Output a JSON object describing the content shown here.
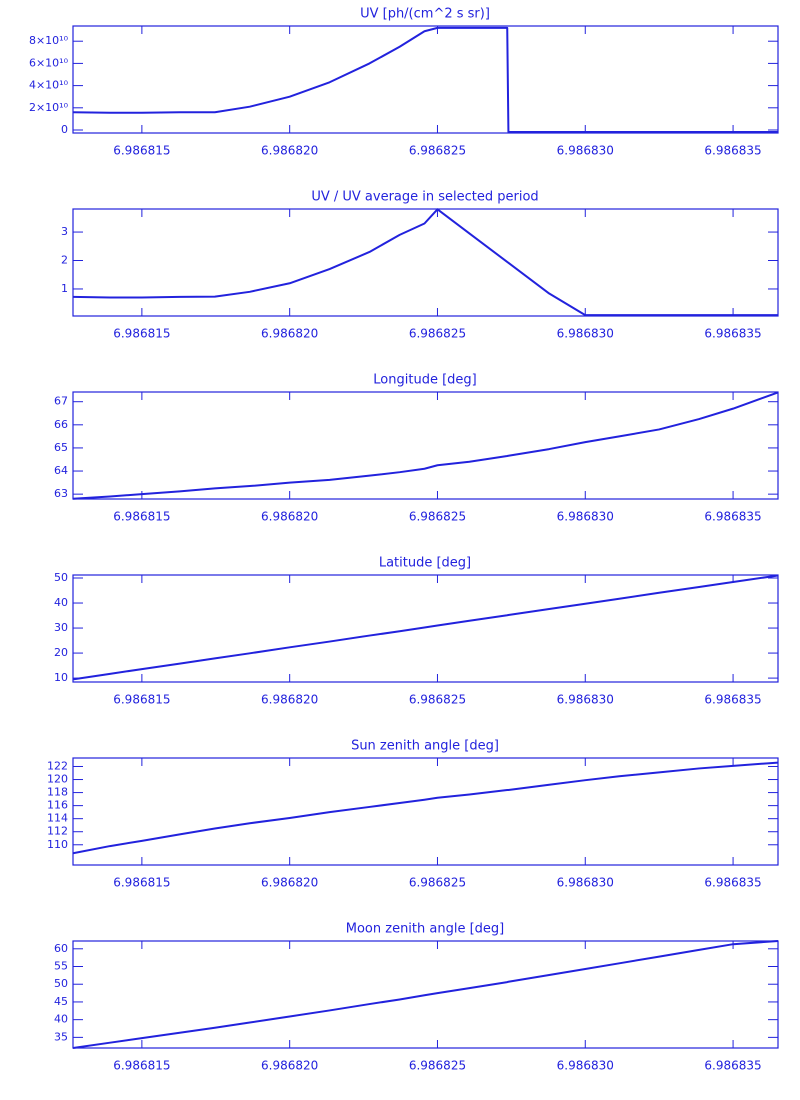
{
  "chart_data": [
    {
      "type": "line",
      "title": "UV [ph/(cm^2 s sr)]",
      "color": "#2222dd",
      "x": [
        6.98681267,
        6.98681392,
        6.986815,
        6.98681628,
        6.98681747,
        6.98681865,
        6.98682,
        6.98682135,
        6.9868227,
        6.98682372,
        6.98682456,
        6.986825,
        6.98682608,
        6.98682736,
        6.9868274,
        6.98682878,
        6.98683,
        6.98683115,
        6.9868325,
        6.98683385,
        6.986835,
        6.98683652
      ],
      "values": [
        16000000000,
        15500000000,
        15500000000,
        16000000000,
        16000000000,
        21000000000,
        30000000000,
        43000000000,
        60000000000,
        75000000000,
        89000000000,
        92000000000,
        92000000000,
        92000000000,
        -1800000000,
        -1800000000,
        -1800000000,
        -1800000000,
        -1800000000,
        -1800000000,
        -1800000000,
        -1800000000
      ],
      "xlim": [
        6.98681267,
        6.98683652
      ],
      "xticks": [
        6.986815,
        {
          "value": 6.98682,
          "label": "6.986820"
        },
        6.986825,
        {
          "value": 6.98683,
          "label": "6.986830"
        },
        6.986835
      ],
      "ylim": [
        -2700000000,
        93700000000
      ],
      "yticks": [
        0,
        {
          "value": 20000000000,
          "label": "2×10¹⁰"
        },
        {
          "value": 40000000000,
          "label": "4×10¹⁰"
        },
        {
          "value": 60000000000,
          "label": "6×10¹⁰"
        },
        {
          "value": 80000000000,
          "label": "8×10¹⁰"
        }
      ]
    },
    {
      "type": "line",
      "title": "UV / UV average in selected period",
      "color": "#2222dd",
      "x": [
        6.98681267,
        6.98681392,
        6.986815,
        6.98681628,
        6.98681747,
        6.98681865,
        6.98682,
        6.98682135,
        6.9868227,
        6.98682372,
        6.98682456,
        6.986825,
        6.98682608,
        6.98682736,
        6.9868274,
        6.98682878,
        6.98683,
        6.98683115,
        6.9868325,
        6.98683385,
        6.986835,
        6.98683652
      ],
      "values": [
        0.72,
        0.7,
        0.7,
        0.72,
        0.73,
        0.9,
        1.2,
        1.7,
        2.3,
        2.9,
        3.3,
        3.8,
        2.95,
        1.95,
        1.92,
        0.84,
        0.08,
        0.08,
        0.08,
        0.08,
        0.08,
        0.08
      ],
      "xlim": [
        6.98681267,
        6.98683652
      ],
      "xticks": [
        6.986815,
        {
          "value": 6.98682,
          "label": "6.986820"
        },
        6.986825,
        {
          "value": 6.98683,
          "label": "6.986830"
        },
        6.986835
      ],
      "ylim": [
        0.05,
        3.81
      ],
      "yticks": [
        1,
        2,
        3
      ]
    },
    {
      "type": "line",
      "title": "Longitude [deg]",
      "color": "#2222dd",
      "x": [
        6.98681267,
        6.98681392,
        6.986815,
        6.98681628,
        6.98681747,
        6.98681865,
        6.98682,
        6.98682135,
        6.9868227,
        6.98682372,
        6.98682456,
        6.986825,
        6.98682608,
        6.98682736,
        6.9868274,
        6.98682878,
        6.98683,
        6.98683115,
        6.9868325,
        6.98683385,
        6.986835,
        6.98683652
      ],
      "values": [
        62.8,
        62.9,
        63.0,
        63.12,
        63.25,
        63.35,
        63.5,
        63.62,
        63.8,
        63.95,
        64.1,
        64.25,
        64.4,
        64.65,
        64.66,
        64.95,
        65.25,
        65.5,
        65.8,
        66.25,
        66.7,
        67.4
      ],
      "xlim": [
        6.98681267,
        6.98683652
      ],
      "xticks": [
        6.986815,
        {
          "value": 6.98682,
          "label": "6.986820"
        },
        6.986825,
        {
          "value": 6.98683,
          "label": "6.986830"
        },
        6.986835
      ],
      "ylim": [
        62.79,
        67.42
      ],
      "yticks": [
        63,
        64,
        65,
        66,
        67
      ]
    },
    {
      "type": "line",
      "title": "Latitude [deg]",
      "color": "#2222dd",
      "x": [
        6.98681267,
        6.98681392,
        6.986815,
        6.98681628,
        6.98681747,
        6.98681865,
        6.98682,
        6.98682135,
        6.9868227,
        6.98682372,
        6.98682456,
        6.986825,
        6.98682608,
        6.98682736,
        6.9868274,
        6.98682878,
        6.98683,
        6.98683115,
        6.9868325,
        6.98683385,
        6.986835,
        6.98683652
      ],
      "values": [
        9.5,
        11.7,
        13.6,
        15.8,
        17.9,
        19.9,
        22.3,
        24.6,
        27,
        28.7,
        30.2,
        31,
        32.9,
        35.1,
        35.2,
        37.6,
        39.7,
        41.7,
        44.1,
        46.4,
        48.4,
        51
      ],
      "xlim": [
        6.98681267,
        6.98683652
      ],
      "xticks": [
        6.986815,
        {
          "value": 6.98682,
          "label": "6.986820"
        },
        6.986825,
        {
          "value": 6.98683,
          "label": "6.986830"
        },
        6.986835
      ],
      "ylim": [
        8.44,
        51.2
      ],
      "yticks": [
        10,
        20,
        30,
        40,
        50
      ]
    },
    {
      "type": "line",
      "title": "Sun zenith angle [deg]",
      "color": "#2222dd",
      "x": [
        6.98681267,
        6.98681392,
        6.986815,
        6.98681628,
        6.98681747,
        6.98681865,
        6.98682,
        6.98682135,
        6.9868227,
        6.98682372,
        6.98682456,
        6.986825,
        6.98682608,
        6.98682736,
        6.9868274,
        6.98682878,
        6.98683,
        6.98683115,
        6.9868325,
        6.98683385,
        6.986835,
        6.98683652
      ],
      "values": [
        108.7,
        109.8,
        110.6,
        111.6,
        112.5,
        113.3,
        114.1,
        115,
        115.8,
        116.4,
        116.9,
        117.2,
        117.7,
        118.4,
        118.4,
        119.2,
        119.9,
        120.5,
        121.1,
        121.7,
        122.1,
        122.6
      ],
      "xlim": [
        6.98681267,
        6.98683652
      ],
      "xticks": [
        6.986815,
        {
          "value": 6.98682,
          "label": "6.986820"
        },
        6.986825,
        {
          "value": 6.98683,
          "label": "6.986830"
        },
        6.986835
      ],
      "ylim": [
        106.9,
        123.3
      ],
      "yticks": [
        110,
        112,
        114,
        116,
        118,
        120,
        122
      ]
    },
    {
      "type": "line",
      "title": "Moon zenith angle [deg]",
      "color": "#2222dd",
      "x": [
        6.98681267,
        6.98681392,
        6.986815,
        6.98681628,
        6.98681747,
        6.98681865,
        6.98682,
        6.98682135,
        6.9868227,
        6.98682372,
        6.98682456,
        6.986825,
        6.98682608,
        6.98682736,
        6.9868274,
        6.98682878,
        6.98683,
        6.98683115,
        6.9868325,
        6.98683385,
        6.986835,
        6.98683652
      ],
      "values": [
        32,
        33.5,
        34.8,
        36.3,
        37.7,
        39.2,
        40.9,
        42.6,
        44.4,
        45.7,
        46.9,
        47.5,
        48.9,
        50.6,
        50.7,
        52.6,
        54.3,
        55.9,
        57.8,
        59.7,
        61.3,
        62.2
      ],
      "xlim": [
        6.98681267,
        6.98683652
      ],
      "xticks": [
        6.986815,
        {
          "value": 6.98682,
          "label": "6.986820"
        },
        6.986825,
        {
          "value": 6.98683,
          "label": "6.986830"
        },
        6.986835
      ],
      "ylim": [
        32,
        62.2
      ],
      "yticks": [
        35,
        40,
        45,
        50,
        55,
        60
      ]
    }
  ]
}
